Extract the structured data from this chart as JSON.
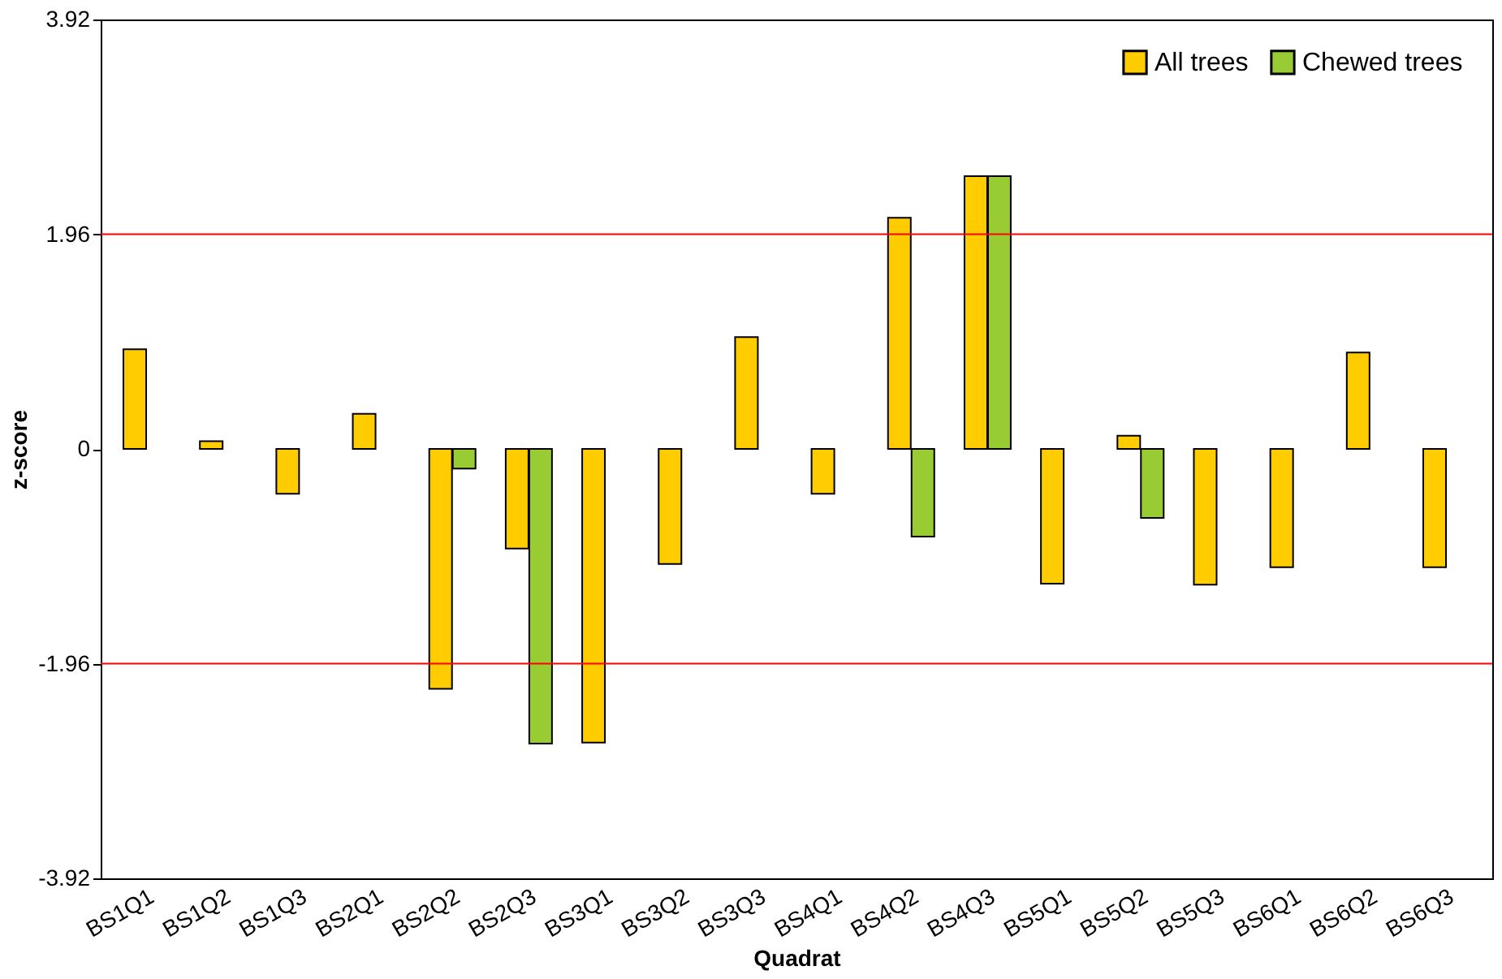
{
  "chart_data": {
    "type": "bar",
    "xlabel": "Quadrat",
    "ylabel": "z-score",
    "categories": [
      "BS1Q1",
      "BS1Q2",
      "BS1Q3",
      "BS2Q1",
      "BS2Q2",
      "BS2Q3",
      "BS3Q1",
      "BS3Q2",
      "BS3Q3",
      "BS4Q1",
      "BS4Q2",
      "BS4Q3",
      "BS5Q1",
      "BS5Q2",
      "BS5Q3",
      "BS6Q1",
      "BS6Q2",
      "BS6Q3"
    ],
    "series": [
      {
        "name": "All trees",
        "color": "#ffcc00",
        "values": [
          0.91,
          0.07,
          -0.41,
          0.32,
          -2.19,
          -0.91,
          -2.68,
          -1.05,
          1.02,
          -0.41,
          2.11,
          2.49,
          -1.23,
          0.12,
          -1.24,
          -1.08,
          0.88,
          -1.08
        ]
      },
      {
        "name": "Chewed trees",
        "color": "#99cc33",
        "values": [
          null,
          null,
          null,
          null,
          -0.18,
          -2.69,
          null,
          null,
          null,
          null,
          -0.8,
          2.49,
          null,
          -0.63,
          null,
          null,
          null,
          null
        ]
      }
    ],
    "ylim": [
      -3.92,
      3.92
    ],
    "yticks": [
      -3.92,
      -1.96,
      0,
      1.96,
      3.92
    ],
    "ref_lines": [
      {
        "axis": "y",
        "value": 1.96,
        "color": "#ff0000"
      },
      {
        "axis": "y",
        "value": -1.96,
        "color": "#ff0000"
      }
    ],
    "grid": false,
    "legend": "top right"
  }
}
